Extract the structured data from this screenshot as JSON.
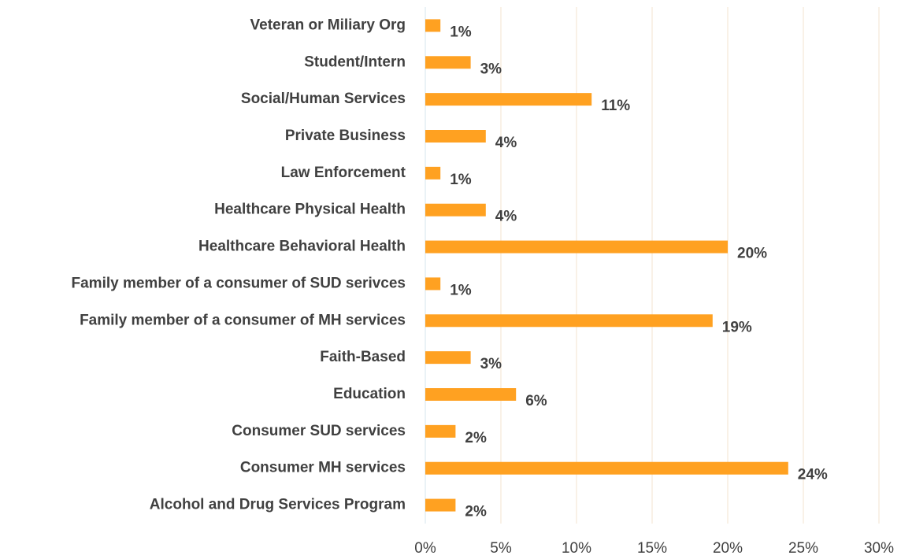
{
  "chart_data": {
    "type": "hbar",
    "categories": [
      "Veteran or Miliary Org",
      "Student/Intern",
      "Social/Human Services",
      "Private Business",
      "Law Enforcement",
      "Healthcare Physical Health",
      "Healthcare Behavioral Health",
      "Family member of a consumer of SUD serivces",
      "Family member of a consumer of MH services",
      "Faith-Based",
      "Education",
      "Consumer SUD services",
      "Consumer MH services",
      "Alcohol and Drug Services Program"
    ],
    "values": [
      1,
      3,
      11,
      4,
      1,
      4,
      20,
      1,
      19,
      3,
      6,
      2,
      24,
      2
    ],
    "value_labels": [
      "1%",
      "3%",
      "11%",
      "4%",
      "1%",
      "4%",
      "20%",
      "1%",
      "19%",
      "3%",
      "6%",
      "2%",
      "24%",
      "2%"
    ],
    "color": "#ffa121",
    "xlim": [
      0,
      30
    ],
    "xticks": [
      {
        "value": 0,
        "label": "0%"
      },
      {
        "value": 5,
        "label": "5%"
      },
      {
        "value": 10,
        "label": "10%"
      },
      {
        "value": 15,
        "label": "15%"
      },
      {
        "value": 20,
        "label": "20%"
      },
      {
        "value": 25,
        "label": "25%"
      },
      {
        "value": 30,
        "label": "30%"
      }
    ],
    "grid": true
  }
}
